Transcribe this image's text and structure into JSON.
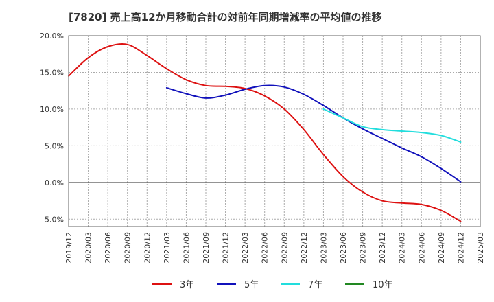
{
  "chart_data": {
    "type": "line",
    "title": "[7820]  売上高12か月移動合計の対前年同期増減率の平均値の推移",
    "xlabel": "",
    "ylabel": "",
    "ylim": [
      -6,
      20
    ],
    "y_ticks": [
      20,
      15,
      10,
      5,
      0,
      -5
    ],
    "y_tick_labels": [
      "20.0%",
      "15.0%",
      "10.0%",
      "5.0%",
      "0.0%",
      "-5.0%"
    ],
    "x_tick_labels": [
      "2019/12",
      "2020/03",
      "2020/06",
      "2020/09",
      "2020/12",
      "2021/03",
      "2021/06",
      "2021/09",
      "2021/12",
      "2022/03",
      "2022/06",
      "2022/09",
      "2022/12",
      "2023/03",
      "2023/06",
      "2023/09",
      "2023/12",
      "2024/03",
      "2024/06",
      "2024/09",
      "2024/12",
      "2025/03"
    ],
    "grid": true,
    "legend_position": "bottom",
    "series": [
      {
        "name": "3年",
        "color": "#dd1111",
        "x": [
          "2019/12",
          "2020/03",
          "2020/06",
          "2020/09",
          "2020/12",
          "2021/03",
          "2021/06",
          "2021/09",
          "2021/12",
          "2022/03",
          "2022/06",
          "2022/09",
          "2022/12",
          "2023/03",
          "2023/06",
          "2023/09",
          "2023/12",
          "2024/03",
          "2024/06",
          "2024/09",
          "2024/12"
        ],
        "values": [
          14.5,
          17.0,
          18.5,
          18.8,
          17.3,
          15.5,
          14.0,
          13.2,
          13.1,
          12.8,
          11.8,
          10.0,
          7.2,
          3.8,
          0.8,
          -1.3,
          -2.5,
          -2.8,
          -3.0,
          -3.8,
          -5.3
        ]
      },
      {
        "name": "5年",
        "color": "#1111bb",
        "x": [
          "2021/03",
          "2021/06",
          "2021/09",
          "2021/12",
          "2022/03",
          "2022/06",
          "2022/09",
          "2022/12",
          "2023/03",
          "2023/06",
          "2023/09",
          "2023/12",
          "2024/03",
          "2024/06",
          "2024/09",
          "2024/12"
        ],
        "values": [
          12.9,
          12.1,
          11.5,
          11.9,
          12.7,
          13.2,
          13.0,
          12.0,
          10.5,
          8.8,
          7.3,
          6.0,
          4.7,
          3.5,
          1.9,
          0.1
        ]
      },
      {
        "name": "7年",
        "color": "#22dddd",
        "x": [
          "2023/03",
          "2023/06",
          "2023/09",
          "2023/12",
          "2024/03",
          "2024/06",
          "2024/09",
          "2024/12"
        ],
        "values": [
          10.0,
          8.8,
          7.6,
          7.2,
          7.0,
          6.8,
          6.4,
          5.5
        ]
      },
      {
        "name": "10年",
        "color": "#228822",
        "x": [],
        "values": []
      }
    ]
  }
}
